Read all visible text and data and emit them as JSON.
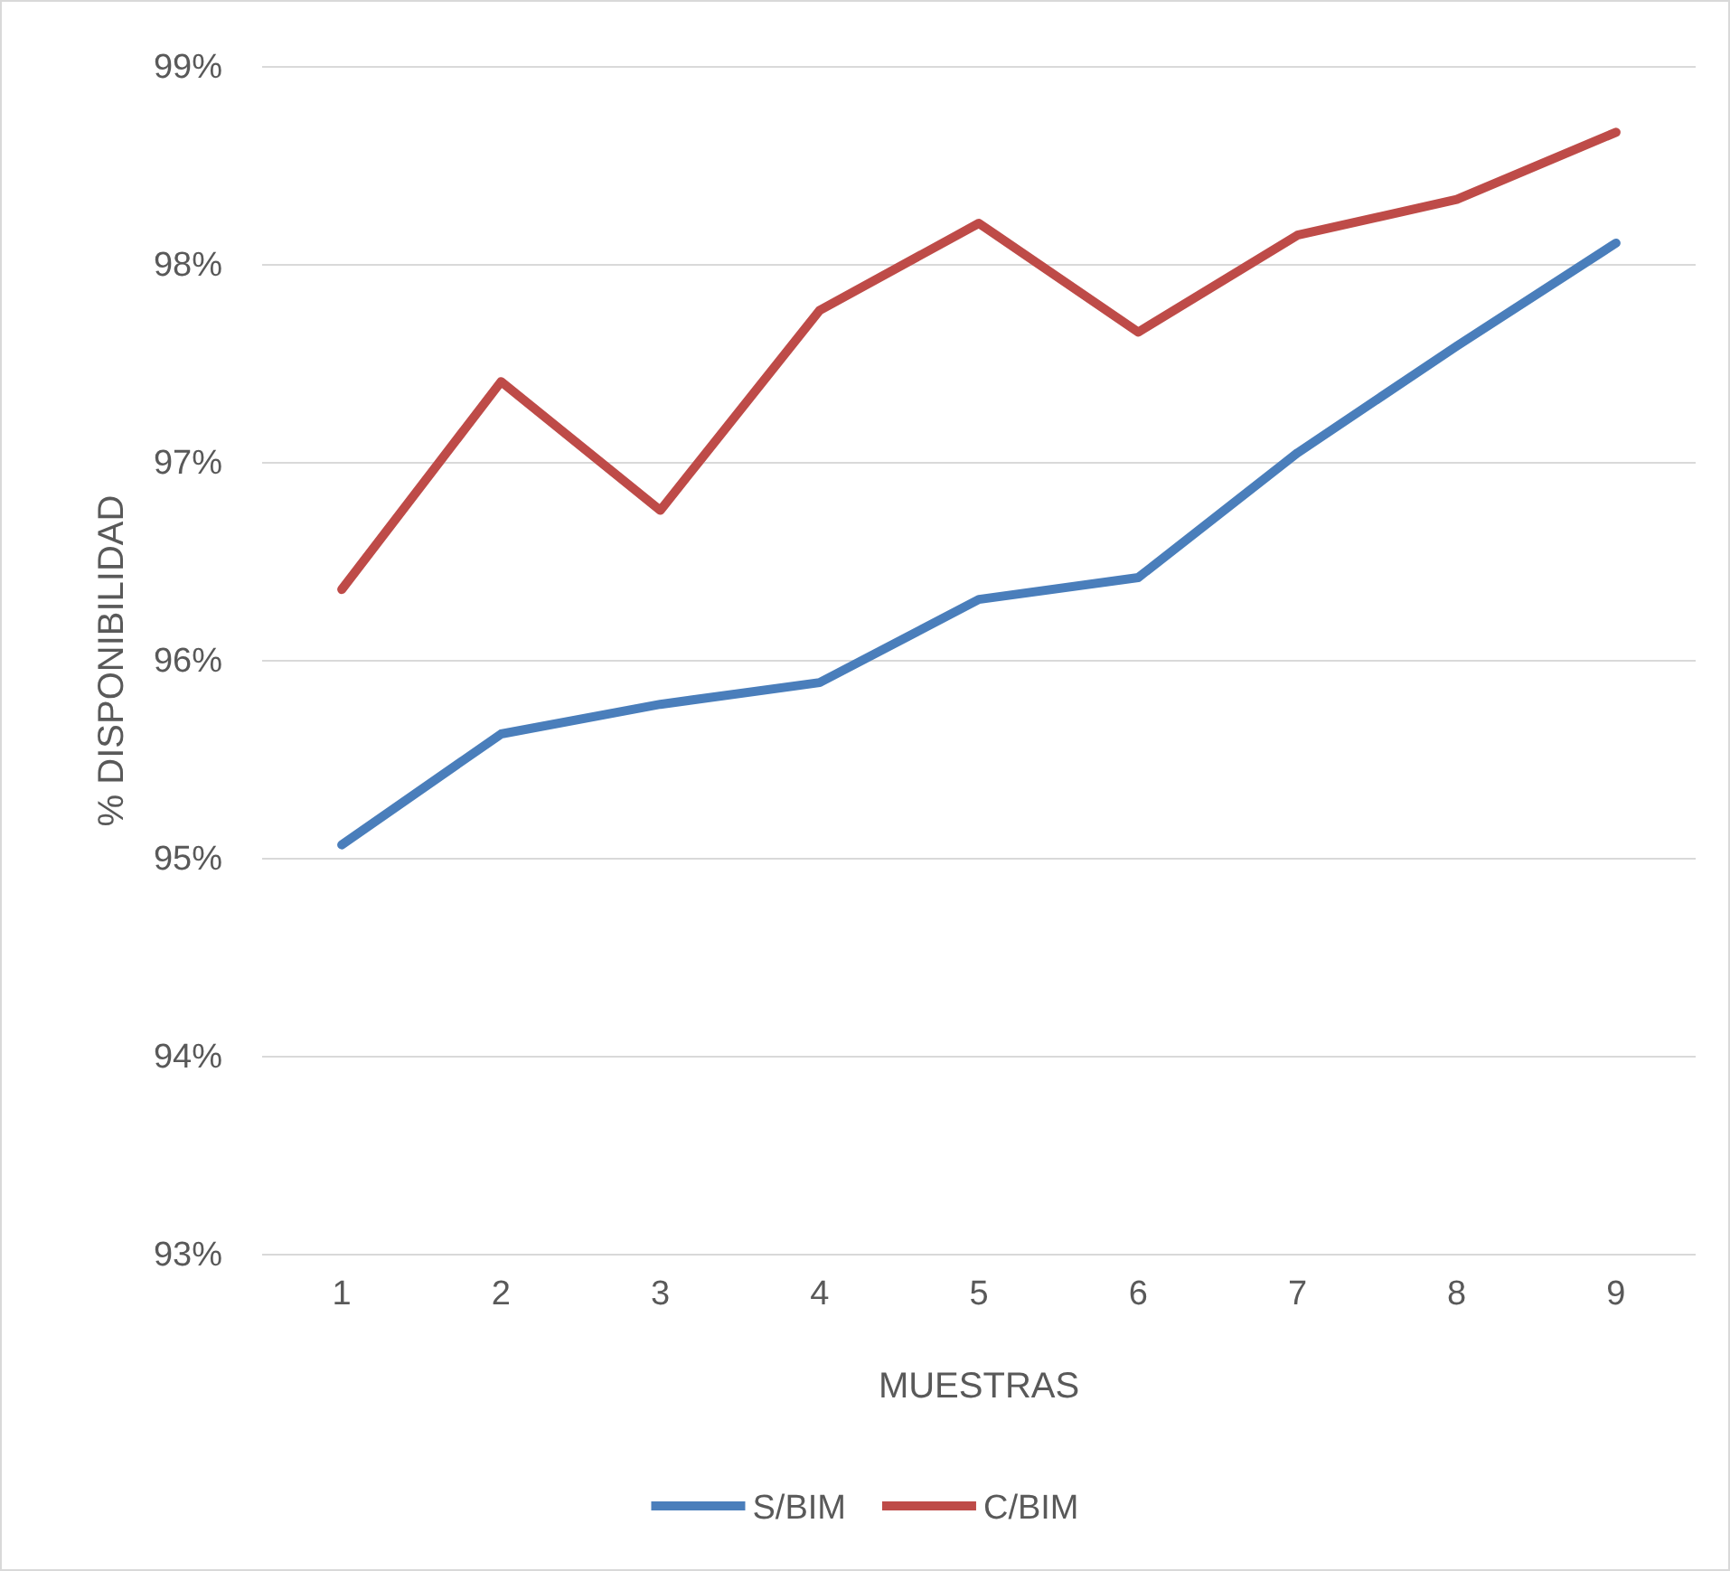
{
  "chart_data": {
    "type": "line",
    "xlabel": "MUESTRAS",
    "ylabel": "% DISPONIBILIDAD",
    "categories": [
      "1",
      "2",
      "3",
      "4",
      "5",
      "6",
      "7",
      "8",
      "9"
    ],
    "series": [
      {
        "name": "S/BIM",
        "color": "#4a7ebb",
        "values": [
          95.07,
          95.63,
          95.78,
          95.89,
          96.31,
          96.42,
          97.05,
          97.59,
          98.11
        ]
      },
      {
        "name": "C/BIM",
        "color": "#be4b48",
        "values": [
          96.36,
          97.41,
          96.76,
          97.77,
          98.21,
          97.66,
          98.15,
          98.33,
          98.67
        ]
      }
    ],
    "ylim": [
      93,
      99
    ],
    "yticks": [
      {
        "value": 93,
        "label": "93%"
      },
      {
        "value": 94,
        "label": "94%"
      },
      {
        "value": 95,
        "label": "95%"
      },
      {
        "value": 96,
        "label": "96%"
      },
      {
        "value": 97,
        "label": "97%"
      },
      {
        "value": 98,
        "label": "98%"
      },
      {
        "value": 99,
        "label": "99%"
      }
    ],
    "grid": "y",
    "legend": "bottom",
    "marker": "none",
    "line_style": "solid"
  }
}
